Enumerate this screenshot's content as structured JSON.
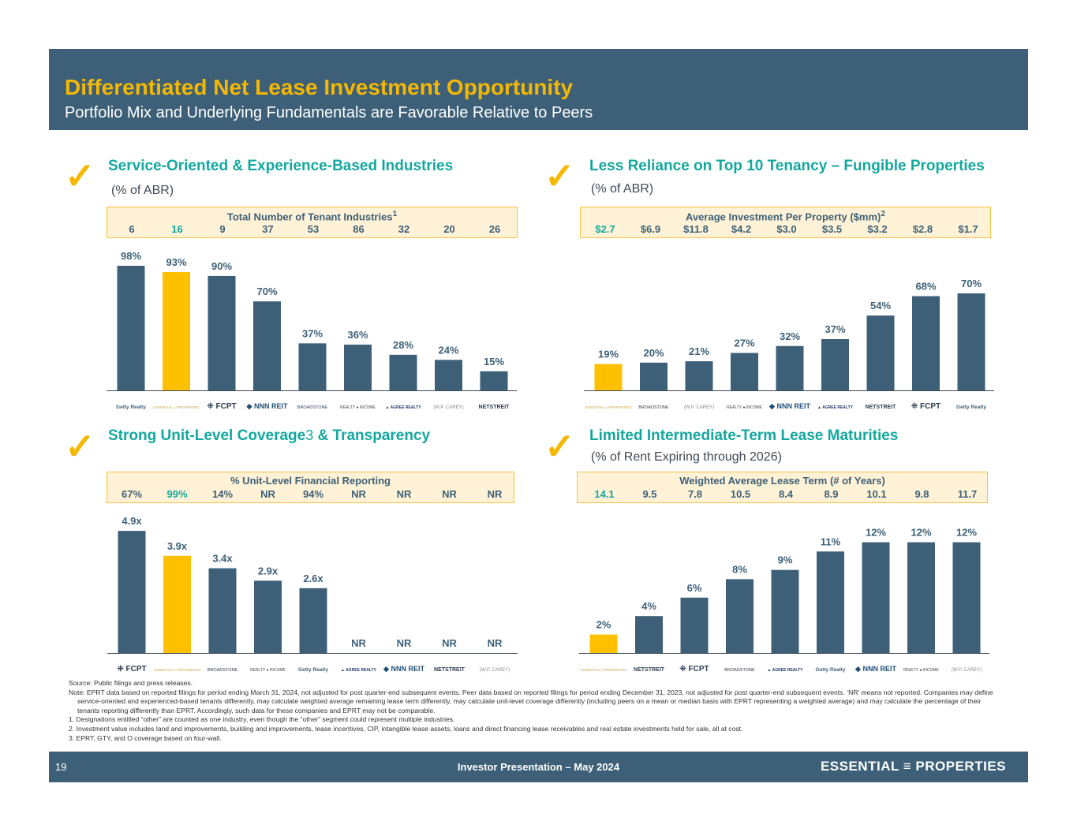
{
  "header": {
    "title": "Differentiated Net Lease Investment Opportunity",
    "subtitle": "Portfolio Mix and Underlying Fundamentals are Favorable Relative to Peers"
  },
  "colors": {
    "bar": "#3d6078",
    "highlight_bar": "#ffc000",
    "heading": "#13a89e",
    "title": "#f5b800"
  },
  "sections": [
    {
      "heading": "Service-Oriented & Experience-Based Industries",
      "subtitle": "(% of ABR)",
      "box_title": "Total Number of Tenant Industries",
      "box_sup": "1"
    },
    {
      "heading": "Less Reliance on Top 10 Tenancy – Fungible Properties",
      "subtitle": "(% of ABR)",
      "box_title": "Average Investment Per Property ($mm)",
      "box_sup": "2"
    },
    {
      "heading_pre": "Strong Unit-Level Coverage",
      "heading_sup": "3",
      "heading_post": " & Transparency",
      "box_title": "% Unit-Level Financial Reporting"
    },
    {
      "heading": "Limited Intermediate-Term Lease Maturities",
      "subtitle": "(% of Rent Expiring through 2026)",
      "box_title": "Weighted Average Lease Term (# of Years)"
    }
  ],
  "chart_data": [
    {
      "type": "bar",
      "categories": [
        "Getty Realty",
        "Essential Properties",
        "FCPT",
        "NNN REIT",
        "Broadstone",
        "Realty Income",
        "Agree Realty",
        "W.P. Carey",
        "NETSTREIT"
      ],
      "values": [
        98,
        93,
        90,
        70,
        37,
        36,
        28,
        24,
        15
      ],
      "labels": [
        "98%",
        "93%",
        "90%",
        "70%",
        "37%",
        "36%",
        "28%",
        "24%",
        "15%"
      ],
      "highlight": "Essential Properties",
      "box_values": [
        "6",
        "16",
        "9",
        "37",
        "53",
        "86",
        "32",
        "20",
        "26"
      ]
    },
    {
      "type": "bar",
      "categories": [
        "Essential Properties",
        "Broadstone",
        "W.P. Carey",
        "Realty Income",
        "NNN REIT",
        "Agree Realty",
        "NETSTREIT",
        "FCPT",
        "Getty Realty"
      ],
      "values": [
        19,
        20,
        21,
        27,
        32,
        37,
        54,
        68,
        70
      ],
      "labels": [
        "19%",
        "20%",
        "21%",
        "27%",
        "32%",
        "37%",
        "54%",
        "68%",
        "70%"
      ],
      "highlight": "Essential Properties",
      "box_values": [
        "$2.7",
        "$6.9",
        "$11.8",
        "$4.2",
        "$3.0",
        "$3.5",
        "$3.2",
        "$2.8",
        "$1.7"
      ]
    },
    {
      "type": "bar",
      "categories": [
        "FCPT",
        "Essential Properties",
        "Broadstone",
        "Realty Income",
        "Getty Realty",
        "Agree Realty",
        "NNN REIT",
        "NETSTREIT",
        "W.P. Carey"
      ],
      "values": [
        4.9,
        3.9,
        3.4,
        2.9,
        2.6,
        null,
        null,
        null,
        null
      ],
      "labels": [
        "4.9x",
        "3.9x",
        "3.4x",
        "2.9x",
        "2.6x",
        "NR",
        "NR",
        "NR",
        "NR"
      ],
      "highlight": "Essential Properties",
      "box_values": [
        "67%",
        "99%",
        "14%",
        "NR",
        "94%",
        "NR",
        "NR",
        "NR",
        "NR"
      ]
    },
    {
      "type": "bar",
      "categories": [
        "Essential Properties",
        "NETSTREIT",
        "FCPT",
        "Broadstone",
        "Agree Realty",
        "Getty Realty",
        "NNN REIT",
        "Realty Income",
        "W.P. Carey"
      ],
      "values": [
        2,
        4,
        6,
        8,
        9,
        11,
        12,
        12,
        12
      ],
      "labels": [
        "2%",
        "4%",
        "6%",
        "8%",
        "9%",
        "11%",
        "12%",
        "12%",
        "12%"
      ],
      "highlight": "Essential Properties",
      "box_values": [
        "14.1",
        "9.5",
        "7.8",
        "10.5",
        "8.4",
        "8.9",
        "10.1",
        "9.8",
        "11.7"
      ]
    }
  ],
  "notes": {
    "source": "Source: Public filings and press releases.",
    "note": "Note: EPRT data based on reported filings for period ending March 31, 2024, not adjusted for post quarter-end subsequent events. Peer data based on reported filings for period ending December 31, 2023, not adjusted for post quarter-end subsequent events. ‘NR’ means not reported. Companies may define service-oriented and experienced-based tenants differently, may calculate weighted average remaining lease term differently, may calculate unit-level coverage differently (including peers on a mean or median basis with EPRT representing a weighted average) and may calculate the percentage of their tenants reporting differently than EPRT. Accordingly, such data for these companies and EPRT may not be comparable.",
    "items": [
      "1.  Designations entitled “other” are counted as one industry, even though the “other” segment could represent multiple industries.",
      "2.  Investment value includes land and improvements, building and improvements, lease incentives, CIP, intangible lease assets, loans and direct financing lease receivables and real estate investments held for sale, all at cost.",
      "3.  EPRT, GTY, and O coverage based on four-wall."
    ]
  },
  "footer": {
    "page": "19",
    "center": "Investor Presentation – May 2024",
    "logo": "ESSENTIAL ≡ PROPERTIES"
  }
}
